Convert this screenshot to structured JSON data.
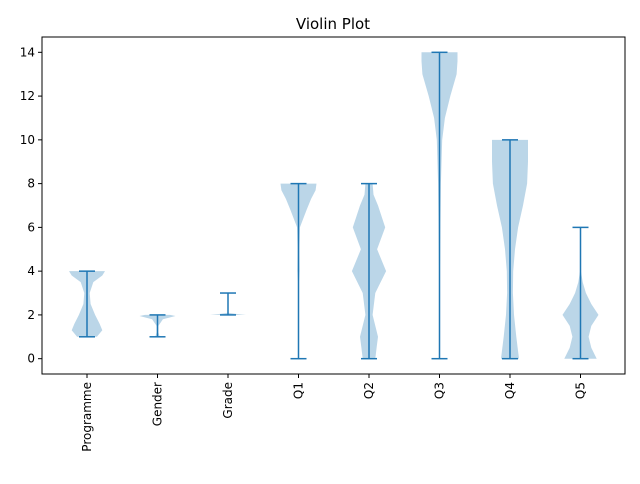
{
  "chart_data": {
    "type": "violin",
    "title": "Violin Plot",
    "xlabel": "",
    "ylabel": "",
    "ylim": [
      -0.7,
      14.7
    ],
    "yticks": [
      0,
      2,
      4,
      6,
      8,
      10,
      12,
      14
    ],
    "categories": [
      "Programme",
      "Gender",
      "Grade",
      "Q1",
      "Q2",
      "Q3",
      "Q4",
      "Q5"
    ],
    "colors": {
      "body": "#1f77b4",
      "body_opacity": 0.3,
      "lines": "#1f77b4"
    },
    "violins": [
      {
        "category": "Programme",
        "min": 1,
        "max": 4,
        "profile": [
          [
            1,
            0.55
          ],
          [
            1.3,
            0.85
          ],
          [
            1.6,
            0.7
          ],
          [
            2,
            0.45
          ],
          [
            2.5,
            0.2
          ],
          [
            3,
            0.15
          ],
          [
            3.5,
            0.35
          ],
          [
            3.8,
            0.85
          ],
          [
            4,
            1.0
          ]
        ]
      },
      {
        "category": "Gender",
        "min": 1,
        "max": 2,
        "profile": [
          [
            1,
            0.12
          ],
          [
            1.2,
            0.05
          ],
          [
            1.5,
            0.05
          ],
          [
            1.8,
            0.3
          ],
          [
            1.95,
            1.0
          ],
          [
            2,
            0.7
          ]
        ]
      },
      {
        "category": "Grade",
        "min": 2,
        "max": 3,
        "profile": [
          [
            2,
            0.5
          ],
          [
            2.02,
            1.0
          ],
          [
            2.04,
            0.5
          ],
          [
            2.1,
            0.0
          ]
        ]
      },
      {
        "category": "Q1",
        "min": 0,
        "max": 8,
        "profile": [
          [
            3,
            0.0
          ],
          [
            3.5,
            0.03
          ],
          [
            4,
            0.06
          ],
          [
            5,
            0.05
          ],
          [
            6,
            0.08
          ],
          [
            6.8,
            0.45
          ],
          [
            7.3,
            0.7
          ],
          [
            7.7,
            0.95
          ],
          [
            8,
            1.0
          ]
        ]
      },
      {
        "category": "Q2",
        "min": 0,
        "max": 8,
        "profile": [
          [
            0,
            0.35
          ],
          [
            0.5,
            0.42
          ],
          [
            1,
            0.5
          ],
          [
            2,
            0.2
          ],
          [
            3,
            0.35
          ],
          [
            4,
            0.95
          ],
          [
            5,
            0.45
          ],
          [
            6,
            0.9
          ],
          [
            7,
            0.5
          ],
          [
            7.5,
            0.25
          ],
          [
            8,
            0.2
          ]
        ]
      },
      {
        "category": "Q3",
        "min": 0,
        "max": 14,
        "profile": [
          [
            0,
            0.0
          ],
          [
            2,
            0.02
          ],
          [
            4,
            0.03
          ],
          [
            6,
            0.05
          ],
          [
            8,
            0.08
          ],
          [
            10,
            0.15
          ],
          [
            11,
            0.3
          ],
          [
            12,
            0.6
          ],
          [
            13,
            0.95
          ],
          [
            13.6,
            1.0
          ],
          [
            14,
            1.0
          ]
        ]
      },
      {
        "category": "Q4",
        "min": 0,
        "max": 10,
        "profile": [
          [
            0,
            0.5
          ],
          [
            1,
            0.35
          ],
          [
            2,
            0.22
          ],
          [
            3,
            0.16
          ],
          [
            4,
            0.18
          ],
          [
            5,
            0.28
          ],
          [
            6,
            0.45
          ],
          [
            7,
            0.72
          ],
          [
            8,
            0.95
          ],
          [
            9,
            1.0
          ],
          [
            10,
            1.0
          ]
        ]
      },
      {
        "category": "Q5",
        "min": 0,
        "max": 6,
        "profile": [
          [
            0,
            0.9
          ],
          [
            0.5,
            0.6
          ],
          [
            1,
            0.45
          ],
          [
            1.5,
            0.6
          ],
          [
            2,
            1.0
          ],
          [
            2.5,
            0.6
          ],
          [
            3,
            0.3
          ],
          [
            3.5,
            0.12
          ],
          [
            4,
            0.02
          ]
        ]
      }
    ]
  }
}
